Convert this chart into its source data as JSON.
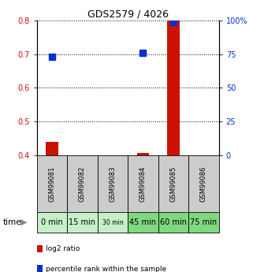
{
  "title": "GDS2579 / 4026",
  "samples": [
    "GSM99081",
    "GSM99082",
    "GSM99083",
    "GSM99084",
    "GSM99085",
    "GSM99086"
  ],
  "time_labels": [
    "0 min",
    "15 min",
    "30 min",
    "45 min",
    "60 min",
    "75 min"
  ],
  "time_colors": [
    "#c8f0c8",
    "#c8f0c8",
    "#c8f0c8",
    "#80d880",
    "#80d880",
    "#80d880"
  ],
  "log2_ratio": [
    0.44,
    null,
    null,
    0.406,
    0.8,
    null
  ],
  "percentile_rank": [
    73,
    null,
    null,
    76,
    99,
    null
  ],
  "ylim_left": [
    0.4,
    0.8
  ],
  "ylim_right": [
    0,
    100
  ],
  "yticks_left": [
    0.4,
    0.5,
    0.6,
    0.7,
    0.8
  ],
  "yticks_right": [
    0,
    25,
    50,
    75,
    100
  ],
  "ytick_labels_right": [
    "0",
    "25",
    "50",
    "75",
    "100%"
  ],
  "bar_color": "#cc1100",
  "dot_color": "#0033cc",
  "bar_width": 0.4,
  "dot_size": 30,
  "sample_box_color": "#cccccc",
  "box_linecolor": "black",
  "legend_items": [
    "log2 ratio",
    "percentile rank within the sample"
  ],
  "legend_colors": [
    "#cc1100",
    "#0033cc"
  ]
}
